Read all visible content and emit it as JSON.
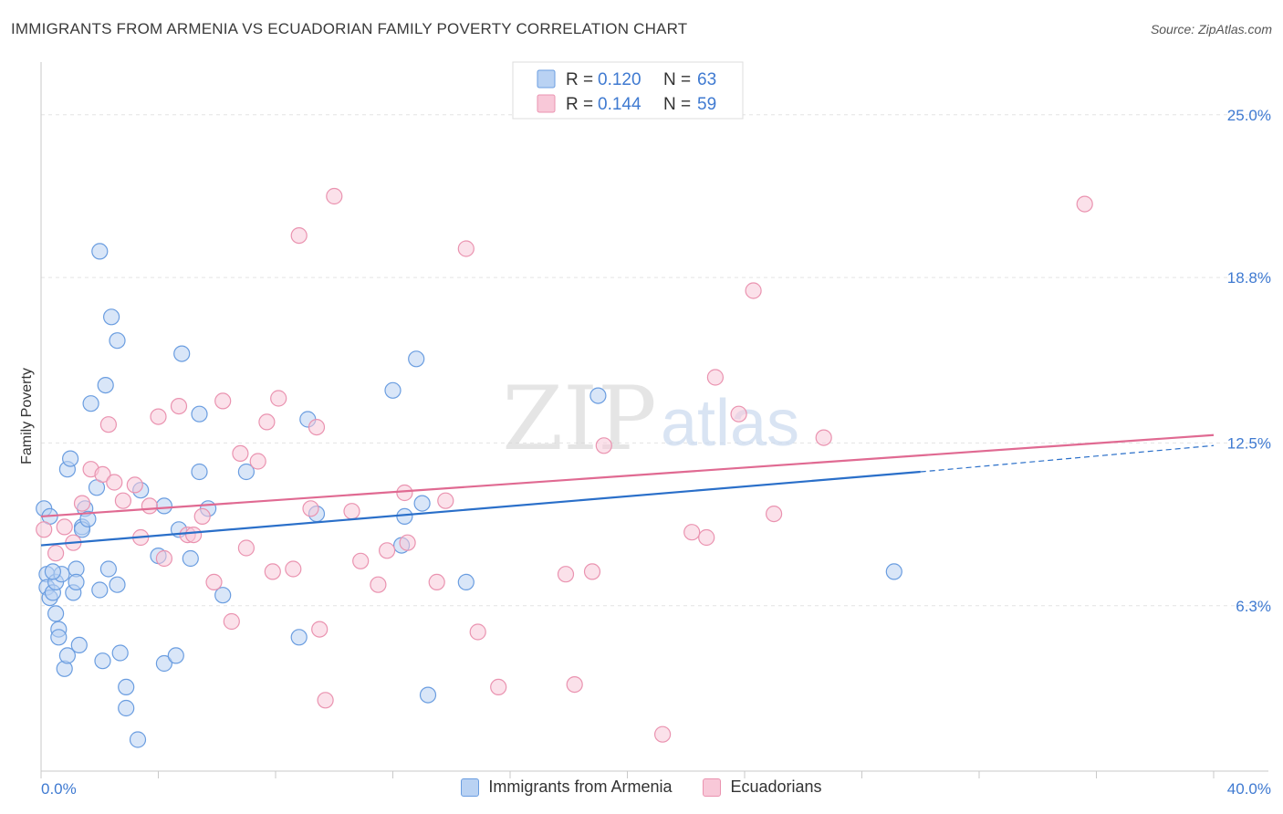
{
  "chart_data": {
    "type": "scatter",
    "title": "IMMIGRANTS FROM ARMENIA VS ECUADORIAN FAMILY POVERTY CORRELATION CHART",
    "source": "Source: ZipAtlas.com",
    "xlabel": "",
    "ylabel": "Family Poverty",
    "xlim": [
      0,
      40
    ],
    "ylim": [
      0,
      26
    ],
    "x_tick_labels": [
      "0.0%",
      "40.0%"
    ],
    "y_ticks": [
      6.3,
      12.5,
      18.8,
      25.0
    ],
    "y_tick_labels": [
      "6.3%",
      "12.5%",
      "18.8%",
      "25.0%"
    ],
    "grid": true,
    "watermark": "ZIPatlas",
    "legend_stats": [
      {
        "r_label": "R =",
        "r_value": "0.120",
        "n_label": "N =",
        "n_value": "63"
      },
      {
        "r_label": "R =",
        "r_value": "0.144",
        "n_label": "N =",
        "n_value": "59"
      }
    ],
    "series": [
      {
        "name": "Immigrants from Armenia",
        "color": "#6a9de0",
        "fill": "#b9d2f3",
        "line_color": "#2a6fc9",
        "trend": {
          "x_start": 0,
          "y_start": 8.6,
          "x_solid_end": 30,
          "y_solid_end": 11.4,
          "x_end": 40,
          "y_end": 12.4
        },
        "points": [
          [
            0.1,
            10.0
          ],
          [
            0.3,
            9.7
          ],
          [
            0.2,
            7.5
          ],
          [
            0.2,
            7.0
          ],
          [
            0.3,
            6.6
          ],
          [
            0.4,
            6.8
          ],
          [
            0.5,
            6.0
          ],
          [
            0.5,
            7.2
          ],
          [
            0.6,
            5.4
          ],
          [
            0.6,
            5.1
          ],
          [
            0.7,
            7.5
          ],
          [
            0.8,
            3.9
          ],
          [
            0.9,
            4.4
          ],
          [
            0.9,
            11.5
          ],
          [
            1.0,
            11.9
          ],
          [
            1.1,
            6.8
          ],
          [
            1.2,
            7.7
          ],
          [
            1.2,
            7.2
          ],
          [
            1.3,
            4.8
          ],
          [
            1.4,
            9.3
          ],
          [
            1.4,
            9.2
          ],
          [
            1.5,
            10.0
          ],
          [
            1.6,
            9.6
          ],
          [
            1.7,
            14.0
          ],
          [
            1.9,
            10.8
          ],
          [
            2.0,
            6.9
          ],
          [
            2.0,
            19.8
          ],
          [
            2.1,
            4.2
          ],
          [
            2.2,
            14.7
          ],
          [
            2.3,
            7.7
          ],
          [
            2.4,
            17.3
          ],
          [
            2.6,
            7.1
          ],
          [
            2.6,
            16.4
          ],
          [
            2.7,
            4.5
          ],
          [
            2.9,
            2.4
          ],
          [
            2.9,
            3.2
          ],
          [
            3.3,
            1.2
          ],
          [
            3.4,
            10.7
          ],
          [
            4.0,
            8.2
          ],
          [
            4.2,
            10.1
          ],
          [
            4.2,
            4.1
          ],
          [
            4.6,
            4.4
          ],
          [
            4.7,
            9.2
          ],
          [
            4.8,
            15.9
          ],
          [
            5.1,
            8.1
          ],
          [
            5.4,
            13.6
          ],
          [
            5.4,
            11.4
          ],
          [
            5.7,
            10.0
          ],
          [
            6.2,
            6.7
          ],
          [
            7.0,
            11.4
          ],
          [
            8.8,
            5.1
          ],
          [
            9.1,
            13.4
          ],
          [
            9.4,
            9.8
          ],
          [
            12.0,
            14.5
          ],
          [
            12.3,
            8.6
          ],
          [
            12.4,
            9.7
          ],
          [
            12.8,
            15.7
          ],
          [
            13.0,
            10.2
          ],
          [
            13.2,
            2.9
          ],
          [
            14.5,
            7.2
          ],
          [
            19.0,
            14.3
          ],
          [
            29.1,
            7.6
          ],
          [
            0.4,
            7.6
          ]
        ]
      },
      {
        "name": "Ecuadorians",
        "color": "#ea93b0",
        "fill": "#f8c8d8",
        "line_color": "#e06a92",
        "trend": {
          "x_start": 0,
          "y_start": 9.7,
          "x_solid_end": 40,
          "y_solid_end": 12.8,
          "x_end": 40,
          "y_end": 12.8
        },
        "points": [
          [
            0.1,
            9.2
          ],
          [
            0.5,
            8.3
          ],
          [
            0.8,
            9.3
          ],
          [
            1.1,
            8.7
          ],
          [
            1.4,
            10.2
          ],
          [
            1.7,
            11.5
          ],
          [
            2.1,
            11.3
          ],
          [
            2.3,
            13.2
          ],
          [
            2.5,
            11.0
          ],
          [
            2.8,
            10.3
          ],
          [
            3.2,
            10.9
          ],
          [
            3.4,
            8.9
          ],
          [
            3.7,
            10.1
          ],
          [
            4.0,
            13.5
          ],
          [
            4.2,
            8.1
          ],
          [
            4.7,
            13.9
          ],
          [
            5.0,
            9.0
          ],
          [
            5.2,
            9.0
          ],
          [
            5.5,
            9.7
          ],
          [
            5.9,
            7.2
          ],
          [
            6.2,
            14.1
          ],
          [
            6.5,
            5.7
          ],
          [
            6.8,
            12.1
          ],
          [
            7.0,
            8.5
          ],
          [
            7.4,
            11.8
          ],
          [
            7.7,
            13.3
          ],
          [
            7.9,
            7.6
          ],
          [
            8.1,
            14.2
          ],
          [
            8.6,
            7.7
          ],
          [
            8.8,
            20.4
          ],
          [
            9.2,
            10.0
          ],
          [
            9.4,
            13.1
          ],
          [
            9.5,
            5.4
          ],
          [
            9.7,
            2.7
          ],
          [
            10.0,
            21.9
          ],
          [
            10.6,
            9.9
          ],
          [
            10.9,
            8.0
          ],
          [
            11.5,
            7.1
          ],
          [
            11.8,
            8.4
          ],
          [
            12.4,
            10.6
          ],
          [
            12.5,
            8.7
          ],
          [
            13.5,
            7.2
          ],
          [
            13.8,
            10.3
          ],
          [
            14.5,
            19.9
          ],
          [
            14.9,
            5.3
          ],
          [
            15.6,
            3.2
          ],
          [
            17.9,
            7.5
          ],
          [
            18.2,
            3.3
          ],
          [
            18.8,
            7.6
          ],
          [
            19.2,
            12.4
          ],
          [
            21.2,
            1.4
          ],
          [
            22.2,
            9.1
          ],
          [
            22.7,
            8.9
          ],
          [
            23.0,
            15.0
          ],
          [
            23.8,
            13.6
          ],
          [
            24.3,
            18.3
          ],
          [
            25.0,
            9.8
          ],
          [
            26.7,
            12.7
          ],
          [
            35.6,
            21.6
          ]
        ]
      }
    ]
  }
}
